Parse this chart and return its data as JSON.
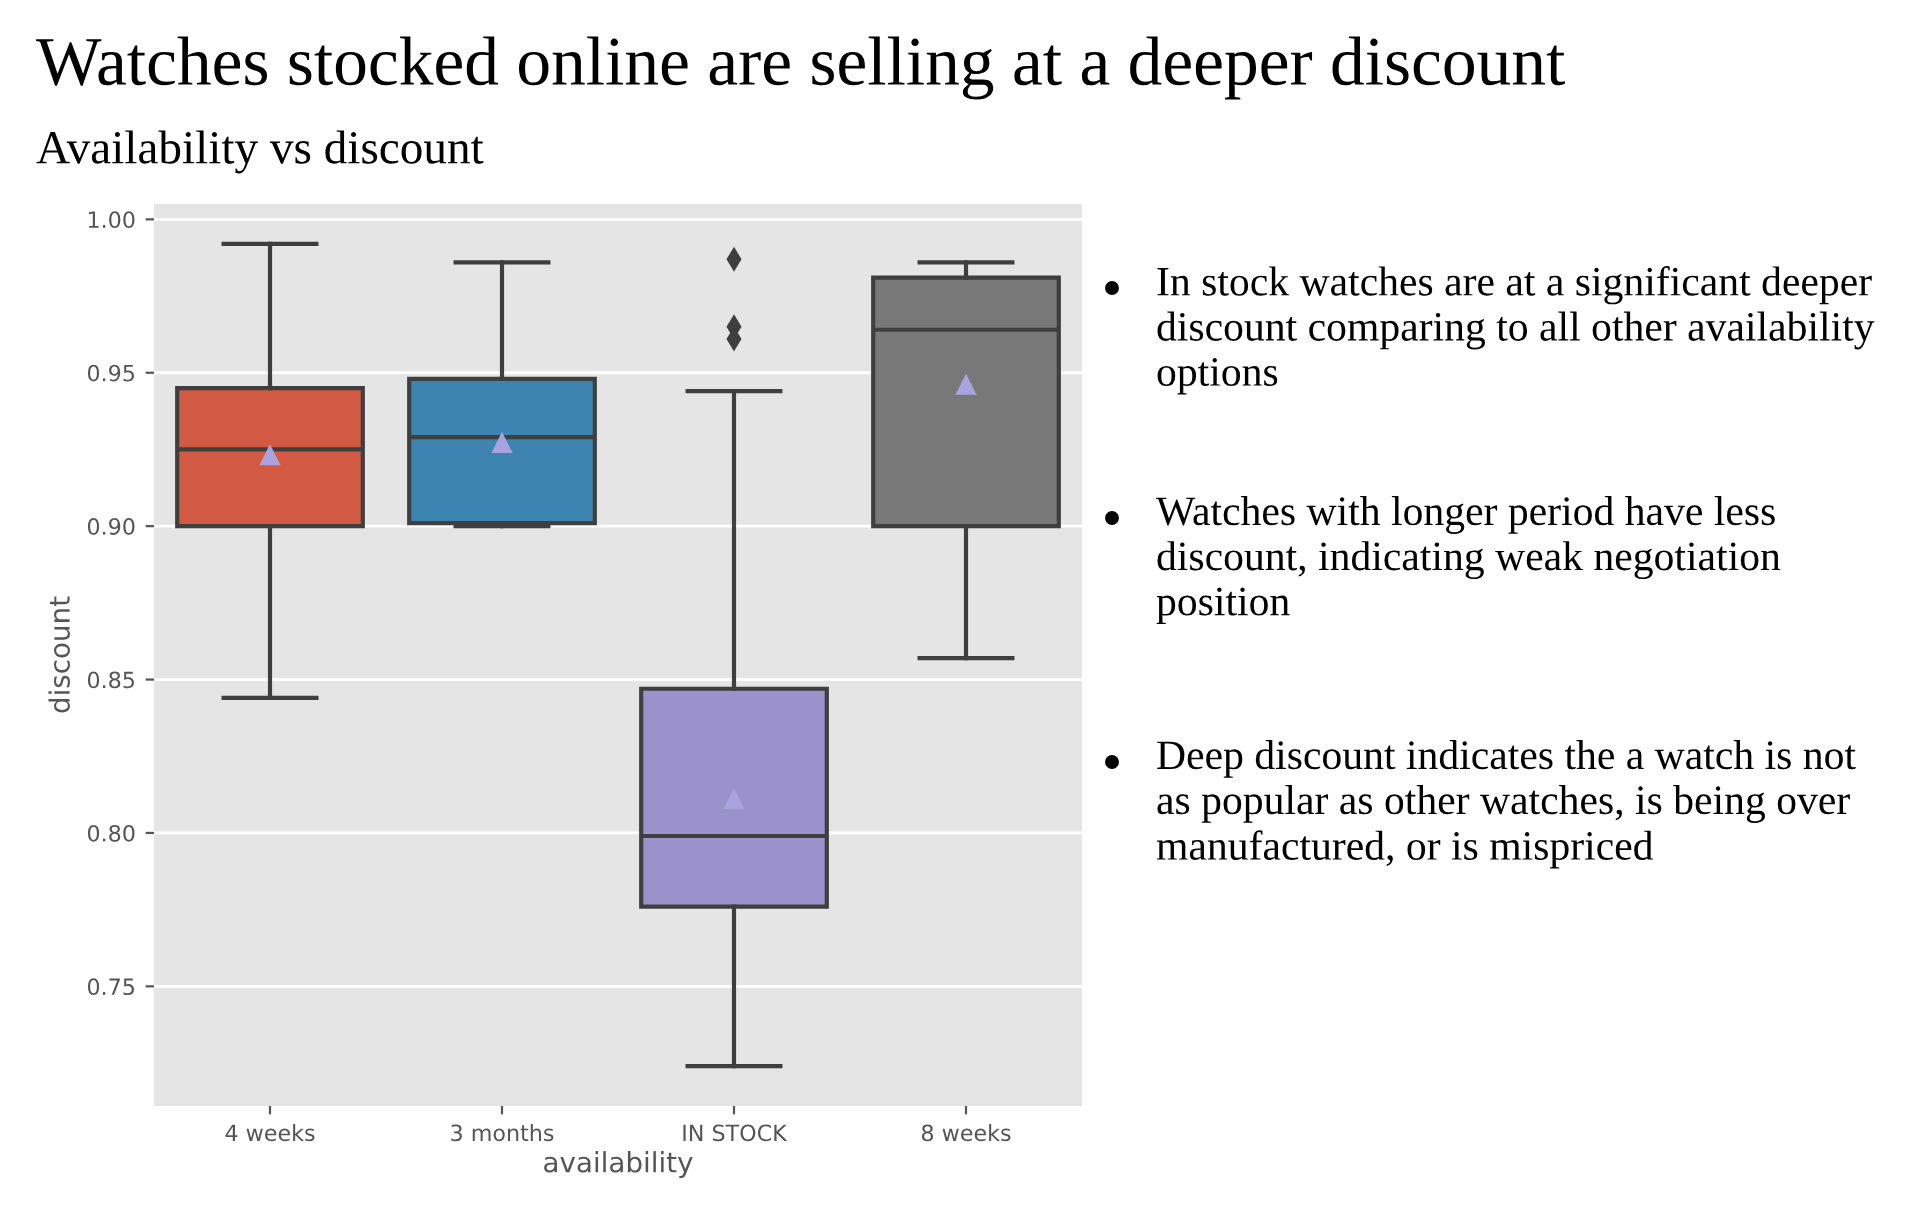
{
  "chart_data": {
    "type": "box",
    "title": "Watches stocked online are selling at a deeper discount",
    "subtitle": "Availability vs discount",
    "xlabel": "availability",
    "ylabel": "discount",
    "categories": [
      "4 weeks",
      "3 months",
      "IN STOCK",
      "8 weeks"
    ],
    "colors": [
      "#d25a43",
      "#3d84b0",
      "#9b92cb",
      "#787878"
    ],
    "boxes": [
      {
        "low": 0.844,
        "q1": 0.9,
        "median": 0.925,
        "q3": 0.945,
        "high": 0.992,
        "mean": 0.923
      },
      {
        "low": 0.9,
        "q1": 0.901,
        "median": 0.929,
        "q3": 0.948,
        "high": 0.986,
        "mean": 0.927
      },
      {
        "low": 0.724,
        "q1": 0.776,
        "median": 0.799,
        "q3": 0.847,
        "high": 0.944,
        "mean": 0.811,
        "outliers": [
          0.987,
          0.965,
          0.961
        ]
      },
      {
        "low": 0.857,
        "q1": 0.9,
        "median": 0.964,
        "q3": 0.981,
        "high": 0.986,
        "mean": 0.946
      }
    ],
    "ylim": [
      0.711,
      1.005
    ],
    "yticks": [
      {
        "value": 0.75,
        "label": "0.75"
      },
      {
        "value": 0.8,
        "label": "0.80"
      },
      {
        "value": 0.85,
        "label": "0.85"
      },
      {
        "value": 0.9,
        "label": "0.90"
      },
      {
        "value": 0.95,
        "label": "0.95"
      },
      {
        "value": 1.0,
        "label": "1.00"
      }
    ],
    "grid": "y",
    "annotations": [
      "In stock watches are at a significant deeper discount comparing to all other availability options",
      "Watches with longer period have less discount, indicating weak negotiation position",
      "Deep discount indicates the a watch is not as popular as other watches, is being over manufactured, or is mispriced"
    ]
  }
}
